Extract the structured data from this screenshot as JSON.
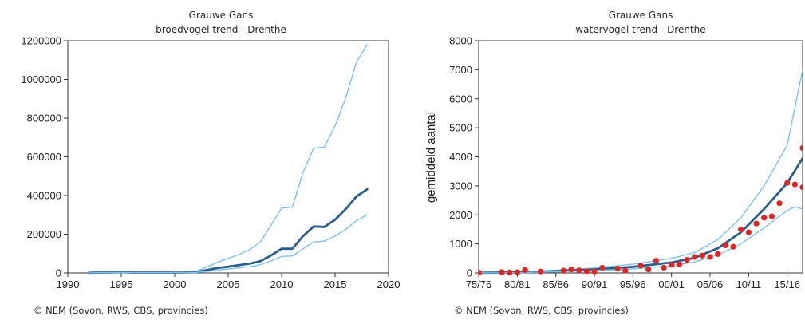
{
  "colors": {
    "bound_line": "#7fc1ea",
    "trend_line": "#2b5f8a",
    "point": "#e02424",
    "axis": "#333333"
  },
  "chart_data": [
    {
      "type": "line",
      "title": "Grauwe Gans",
      "subtitle": "broedvogel trend - Drenthe",
      "xlabel": "",
      "ylabel": "",
      "xlim": [
        1990,
        2020
      ],
      "ylim": [
        0,
        1200000
      ],
      "x_ticks": [
        1990,
        1995,
        2000,
        2005,
        2010,
        2015,
        2020
      ],
      "y_ticks": [
        0,
        200000,
        400000,
        600000,
        800000,
        1000000,
        1200000
      ],
      "x_tick_labels": [
        "1990",
        "1995",
        "2000",
        "2005",
        "2010",
        "2015",
        "2020"
      ],
      "y_tick_labels": [
        "0",
        "200000",
        "400000",
        "600000",
        "800000",
        "1000000",
        "1200000"
      ],
      "series": [
        {
          "role": "upper-bound",
          "x": [
            1992,
            1993,
            1994,
            1995,
            1996,
            1997,
            1998,
            1999,
            2000,
            2001,
            2002,
            2003,
            2004,
            2005,
            2006,
            2007,
            2008,
            2009,
            2010,
            2011,
            2012,
            2013,
            2014,
            2015,
            2016,
            2017,
            2018
          ],
          "values": [
            1500,
            3000,
            4000,
            5000,
            3000,
            3000,
            3000,
            3000,
            3000,
            4000,
            8000,
            30000,
            55000,
            75000,
            95000,
            120000,
            160000,
            245000,
            335000,
            340000,
            520000,
            645000,
            650000,
            760000,
            905000,
            1090000,
            1180000
          ]
        },
        {
          "role": "trend",
          "x": [
            1992,
            1993,
            1994,
            1995,
            1996,
            1997,
            1998,
            1999,
            2000,
            2001,
            2002,
            2003,
            2004,
            2005,
            2006,
            2007,
            2008,
            2009,
            2010,
            2011,
            2012,
            2013,
            2014,
            2015,
            2016,
            2017,
            2018
          ],
          "values": [
            1000,
            2000,
            3000,
            4000,
            2000,
            2000,
            2000,
            2000,
            2000,
            2500,
            4000,
            15000,
            25000,
            32000,
            40000,
            48000,
            60000,
            90000,
            125000,
            125000,
            190000,
            240000,
            238000,
            275000,
            330000,
            395000,
            432000
          ]
        },
        {
          "role": "lower-bound",
          "x": [
            1992,
            1993,
            1994,
            1995,
            1996,
            1997,
            1998,
            1999,
            2000,
            2001,
            2002,
            2003,
            2004,
            2005,
            2006,
            2007,
            2008,
            2009,
            2010,
            2011,
            2012,
            2013,
            2014,
            2015,
            2016,
            2017,
            2018
          ],
          "values": [
            500,
            1500,
            2000,
            3000,
            1500,
            1500,
            1500,
            1500,
            1500,
            2000,
            3000,
            8000,
            14000,
            20000,
            26000,
            32000,
            42000,
            62000,
            85000,
            88000,
            125000,
            160000,
            165000,
            190000,
            225000,
            270000,
            300000
          ]
        }
      ],
      "grid": false,
      "legend": "none"
    },
    {
      "type": "line",
      "title": "Grauwe Gans",
      "subtitle": "watervogel trend - Drenthe",
      "xlabel": "",
      "ylabel": "gemiddeld aantal",
      "xlim": [
        1975,
        2017
      ],
      "ylim": [
        0,
        8000
      ],
      "x_ticks": [
        1975,
        1980,
        1985,
        1990,
        1995,
        2000,
        2005,
        2010,
        2015
      ],
      "y_ticks": [
        0,
        1000,
        2000,
        3000,
        4000,
        5000,
        6000,
        7000,
        8000
      ],
      "x_tick_labels": [
        "75/76",
        "80/81",
        "85/86",
        "90/91",
        "95/96",
        "00/01",
        "05/06",
        "10/11",
        "15/16"
      ],
      "y_tick_labels": [
        "0",
        "1000",
        "2000",
        "3000",
        "4000",
        "5000",
        "6000",
        "7000",
        "8000"
      ],
      "series": [
        {
          "role": "upper-bound",
          "x": [
            1975,
            1980,
            1985,
            1990,
            1995,
            2000,
            2003,
            2006,
            2009,
            2012,
            2015,
            2017
          ],
          "values": [
            10,
            40,
            90,
            170,
            300,
            500,
            700,
            1150,
            1900,
            3000,
            4400,
            7000
          ]
        },
        {
          "role": "trend",
          "x": [
            1975,
            1980,
            1985,
            1990,
            1995,
            2000,
            2003,
            2006,
            2009,
            2012,
            2015,
            2017
          ],
          "values": [
            5,
            20,
            60,
            120,
            210,
            360,
            520,
            850,
            1400,
            2200,
            3100,
            3950
          ]
        },
        {
          "role": "lower-bound",
          "x": [
            1975,
            1980,
            1985,
            1990,
            1995,
            2000,
            2003,
            2006,
            2009,
            2012,
            2015,
            2016,
            2017
          ],
          "values": [
            2,
            10,
            35,
            80,
            140,
            250,
            380,
            620,
            1000,
            1550,
            2150,
            2280,
            2200
          ]
        },
        {
          "role": "observed",
          "x": [
            1975,
            1978,
            1979,
            1980,
            1981,
            1983,
            1986,
            1987,
            1988,
            1989,
            1990,
            1991,
            1993,
            1994,
            1996,
            1997,
            1998,
            1999,
            2000,
            2001,
            2002,
            2003,
            2004,
            2005,
            2006,
            2007,
            2008,
            2009,
            2010,
            2011,
            2012,
            2013,
            2014,
            2015,
            2016,
            2017
          ],
          "values": [
            10,
            30,
            15,
            25,
            100,
            50,
            80,
            120,
            90,
            60,
            50,
            180,
            150,
            80,
            250,
            120,
            420,
            180,
            280,
            300,
            450,
            550,
            600,
            550,
            650,
            950,
            900,
            1500,
            1400,
            1700,
            1900,
            1950,
            2400,
            3100,
            3050,
            2950
          ]
        },
        {
          "role": "observed-edge",
          "x": [
            2017
          ],
          "values": [
            4300
          ]
        }
      ],
      "grid": false,
      "legend": "none"
    }
  ],
  "credits": {
    "left": "© NEM (Sovon, RWS, CBS, provincies)",
    "right": "© NEM (Sovon, RWS, CBS, provincies)"
  }
}
